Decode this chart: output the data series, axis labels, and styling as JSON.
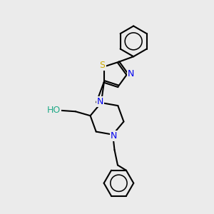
{
  "background_color": "#ebebeb",
  "bond_color": "#000000",
  "label_colors": {
    "N": "#0000ee",
    "S": "#ccaa00",
    "O": "#ff0000",
    "HO": "#22aa88"
  },
  "figsize": [
    3.0,
    3.0
  ],
  "dpi": 100,
  "xlim": [
    0,
    10
  ],
  "ylim": [
    0,
    10
  ]
}
